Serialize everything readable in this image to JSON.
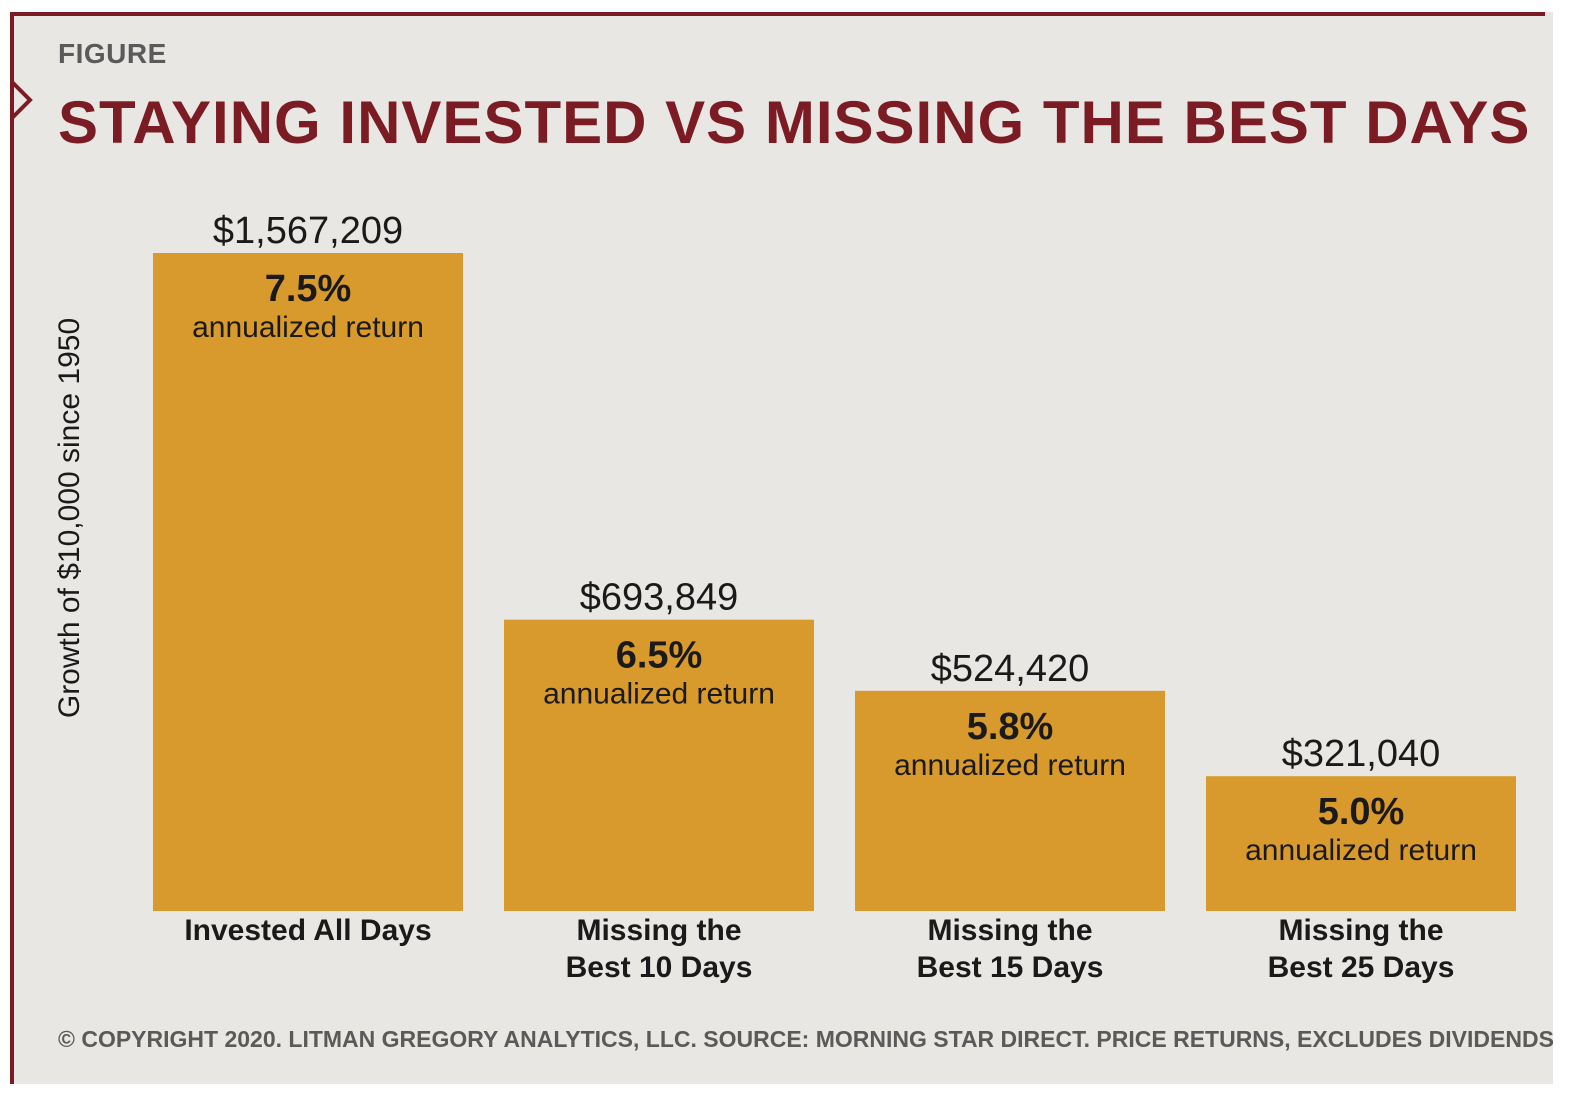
{
  "kicker": "FIGURE",
  "title": "STAYING INVESTED VS MISSING THE BEST DAYS",
  "footer": "© COPYRIGHT 2020. LITMAN GREGORY ANALYTICS, LLC. SOURCE: MORNING STAR DIRECT. PRICE RETURNS, EXCLUDES DIVIDENDS",
  "colors": {
    "bar": "#d89a2d",
    "brand": "#7b1c24",
    "panel": "#e9e7e4"
  },
  "chart_data": {
    "type": "bar",
    "title": "STAYING INVESTED VS MISSING THE BEST DAYS",
    "ylabel": "Growth of $10,000 since 1950",
    "xlabel": "",
    "ylim": [
      0,
      1567209
    ],
    "categories": [
      [
        "Invested All Days"
      ],
      [
        "Missing the",
        "Best 10 Days"
      ],
      [
        "Missing the",
        "Best 15 Days"
      ],
      [
        "Missing the",
        "Best 25 Days"
      ]
    ],
    "values": [
      1567209,
      693849,
      524420,
      321040
    ],
    "value_labels": [
      "$1,567,209",
      "$693,849",
      "$524,420",
      "$321,040"
    ],
    "returns": [
      "7.5%",
      "6.5%",
      "5.8%",
      "5.0%"
    ],
    "return_caption": "annualized return"
  }
}
